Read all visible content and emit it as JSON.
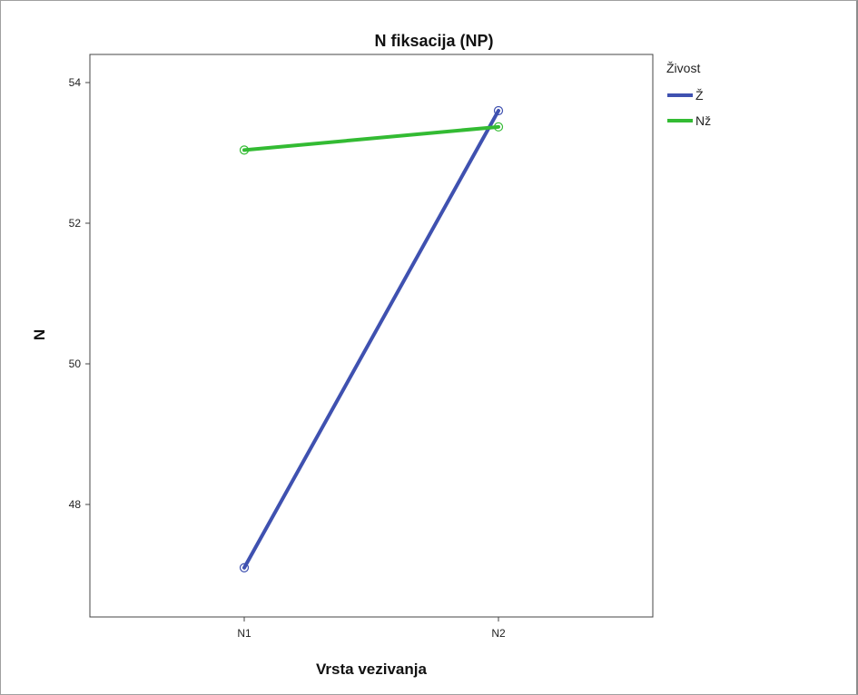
{
  "chart_data": {
    "type": "line",
    "title": "N fiksacija (NP)",
    "xlabel": "Vrsta vezivanja",
    "ylabel": "N",
    "categories": [
      "N1",
      "N2"
    ],
    "y_ticks": [
      48,
      50,
      52,
      54
    ],
    "ylim": [
      46.4,
      54.4
    ],
    "grid": false,
    "legend": {
      "title": "Živost",
      "placement": "right"
    },
    "series": [
      {
        "name": "Ž",
        "values": [
          47.1,
          53.6
        ],
        "color": "#3f51b0"
      },
      {
        "name": "Nž",
        "values": [
          53.04,
          53.37
        ],
        "color": "#33bb33"
      }
    ]
  }
}
